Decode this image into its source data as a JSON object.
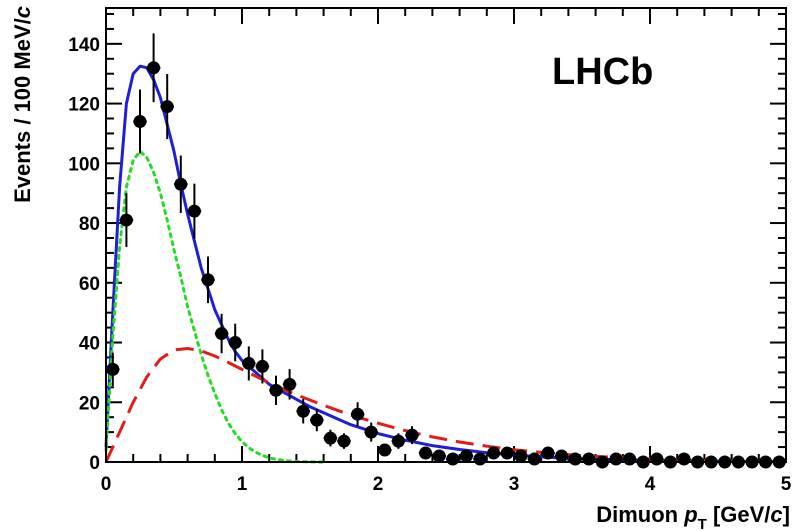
{
  "chart_data": {
    "type": "scatter",
    "experiment_label": "LHCb",
    "xlabel": {
      "prefix": "Dimuon ",
      "symbol": "p",
      "subscript": "T",
      "unit_open": " [GeV/",
      "unit_c": "c",
      "unit_close": "]"
    },
    "ylabel": {
      "main": "Events / 100 MeV/",
      "unit_c": "c"
    },
    "xlim": [
      0,
      5
    ],
    "ylim": [
      0,
      152
    ],
    "xticks": [
      0,
      1,
      2,
      3,
      4,
      5
    ],
    "yticks": [
      0,
      20,
      40,
      60,
      80,
      100,
      120,
      140
    ],
    "x_minor_step": 0.2,
    "y_minor_step": 5,
    "data_points": {
      "x": [
        0.05,
        0.15,
        0.25,
        0.35,
        0.45,
        0.55,
        0.65,
        0.75,
        0.85,
        0.95,
        1.05,
        1.15,
        1.25,
        1.35,
        1.45,
        1.55,
        1.65,
        1.75,
        1.85,
        1.95,
        2.05,
        2.15,
        2.25,
        2.35,
        2.45,
        2.55,
        2.65,
        2.75,
        2.85,
        2.95,
        3.05,
        3.15,
        3.25,
        3.35,
        3.45,
        3.55,
        3.65,
        3.75,
        3.85,
        3.95,
        4.05,
        4.15,
        4.25,
        4.35,
        4.45,
        4.55,
        4.65,
        4.75,
        4.85,
        4.95
      ],
      "y": [
        31,
        81,
        114,
        132,
        119,
        93,
        84,
        61,
        43,
        40,
        33,
        32,
        24,
        26,
        17,
        14,
        8,
        7,
        16,
        10,
        4,
        7,
        9,
        3,
        2,
        1,
        2,
        1,
        3,
        3,
        2,
        1,
        3,
        2,
        1,
        1,
        0,
        1,
        1,
        0,
        1,
        0,
        1,
        0,
        0,
        0,
        0,
        0,
        0,
        0
      ],
      "yerr": [
        5.6,
        9,
        10.7,
        11.5,
        10.9,
        9.6,
        9.2,
        7.8,
        6.6,
        6.3,
        5.7,
        5.7,
        4.9,
        5.1,
        4.1,
        3.7,
        2.8,
        2.6,
        4,
        3.2,
        2,
        2.6,
        3,
        1.7,
        1.4,
        1,
        1.4,
        1,
        1.7,
        1.7,
        1.4,
        1,
        1.7,
        1.4,
        1,
        1,
        0,
        1,
        1,
        0,
        1,
        0,
        1,
        0,
        0,
        0,
        0,
        0,
        0,
        0
      ]
    },
    "curves": [
      {
        "role": "total fit",
        "style": "solid",
        "color": "#1f1fd6",
        "x": [
          0.0,
          0.05,
          0.1,
          0.15,
          0.2,
          0.25,
          0.3,
          0.35,
          0.4,
          0.45,
          0.5,
          0.55,
          0.6,
          0.65,
          0.7,
          0.75,
          0.8,
          0.85,
          0.9,
          0.95,
          1.0,
          1.1,
          1.2,
          1.3,
          1.4,
          1.5,
          1.6,
          1.7,
          1.8,
          1.9,
          2.0,
          2.2,
          2.4,
          2.6,
          2.8,
          3.0,
          3.25,
          3.5,
          4.0,
          4.5,
          5.0
        ],
        "y": [
          5,
          50,
          92,
          120,
          130,
          132.5,
          132,
          128,
          122,
          113,
          104,
          93,
          83,
          74,
          65,
          58,
          51,
          46,
          41,
          37,
          34,
          30,
          26,
          23.5,
          21,
          18.5,
          16.5,
          14.5,
          12.5,
          11,
          9.5,
          7.3,
          5.5,
          4.2,
          3.1,
          2.3,
          1.6,
          1.1,
          0.5,
          0.25,
          0.1
        ]
      },
      {
        "role": "component 1",
        "style": "dotted",
        "color": "#22dd22",
        "x": [
          0.0,
          0.05,
          0.1,
          0.15,
          0.2,
          0.25,
          0.3,
          0.35,
          0.4,
          0.45,
          0.5,
          0.55,
          0.6,
          0.65,
          0.7,
          0.75,
          0.8,
          0.85,
          0.9,
          0.95,
          1.0,
          1.05,
          1.1,
          1.15,
          1.2,
          1.25,
          1.3,
          1.35,
          1.4,
          1.5,
          1.6
        ],
        "y": [
          4,
          42,
          72,
          92,
          101,
          104,
          102,
          97,
          90,
          81,
          71,
          62,
          52,
          44,
          36,
          29,
          23,
          17.5,
          13,
          9.5,
          6.8,
          4.8,
          3.3,
          2.2,
          1.4,
          0.9,
          0.6,
          0.3,
          0.2,
          0.05,
          0
        ]
      },
      {
        "role": "component 2",
        "style": "dashed",
        "color": "#e11c1c",
        "x": [
          0.0,
          0.1,
          0.2,
          0.3,
          0.4,
          0.5,
          0.6,
          0.7,
          0.8,
          0.9,
          1.0,
          1.2,
          1.4,
          1.6,
          1.8,
          2.0,
          2.2,
          2.4,
          2.6,
          2.8,
          3.0,
          3.25,
          3.5,
          4.0,
          4.5,
          5.0
        ],
        "y": [
          0,
          10,
          20,
          28.5,
          34.5,
          37.5,
          38,
          37.2,
          35.5,
          33.3,
          31,
          26.5,
          22.5,
          19,
          15.7,
          13,
          10.5,
          8.4,
          6.7,
          5.3,
          4.1,
          3,
          2.1,
          1,
          0.4,
          0.15
        ]
      }
    ]
  }
}
